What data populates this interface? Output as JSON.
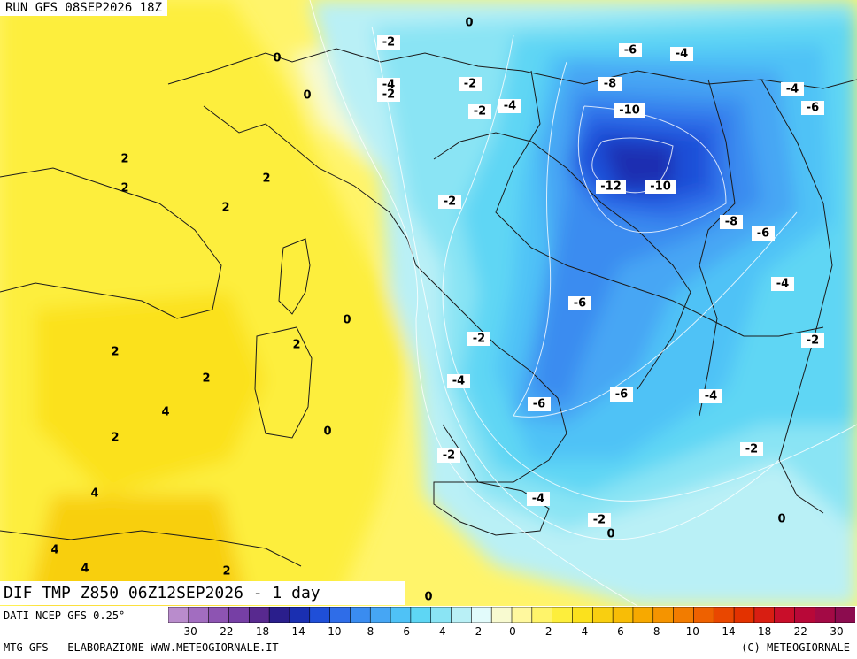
{
  "header": {
    "run_label": "RUN GFS 08SEP2026 18Z"
  },
  "map": {
    "title": "DIF TMP Z850 06Z12SEP2026 - 1 day",
    "field_labels": [
      {
        "text": "0"
      },
      {
        "text": "-2"
      },
      {
        "text": "0"
      },
      {
        "text": "0"
      },
      {
        "text": "-4"
      },
      {
        "text": "-2"
      },
      {
        "text": "-2"
      },
      {
        "text": "-2"
      },
      {
        "text": "-4"
      },
      {
        "text": "-6"
      },
      {
        "text": "-4"
      },
      {
        "text": "-8"
      },
      {
        "text": "-4"
      },
      {
        "text": "-10"
      },
      {
        "text": "-6"
      },
      {
        "text": "2"
      },
      {
        "text": "2"
      },
      {
        "text": "2"
      },
      {
        "text": "2"
      },
      {
        "text": "-12"
      },
      {
        "text": "-10"
      },
      {
        "text": "-2"
      },
      {
        "text": "-8"
      },
      {
        "text": "-6"
      },
      {
        "text": "-4"
      },
      {
        "text": "-6"
      },
      {
        "text": "0"
      },
      {
        "text": "2"
      },
      {
        "text": "-2"
      },
      {
        "text": "-2"
      },
      {
        "text": "2"
      },
      {
        "text": "2"
      },
      {
        "text": "-4"
      },
      {
        "text": "-6"
      },
      {
        "text": "-6"
      },
      {
        "text": "-4"
      },
      {
        "text": "4"
      },
      {
        "text": "0"
      },
      {
        "text": "2"
      },
      {
        "text": "-2"
      },
      {
        "text": "-2"
      },
      {
        "text": "4"
      },
      {
        "text": "-4"
      },
      {
        "text": "-2"
      },
      {
        "text": "0"
      },
      {
        "text": "0"
      },
      {
        "text": "4"
      },
      {
        "text": "4"
      },
      {
        "text": "2"
      },
      {
        "text": "0"
      }
    ]
  },
  "source_note": "DATI NCEP GFS 0.25°",
  "scale": {
    "colors": [
      "#b98ccc",
      "#a26dc0",
      "#8d54b2",
      "#763fa5",
      "#58298f",
      "#2a1e8c",
      "#1a2fb1",
      "#1f4fd8",
      "#2f6de8",
      "#3a8cf0",
      "#46a6f4",
      "#4fc2f6",
      "#5ed6f4",
      "#8ae4f4",
      "#b9f0f6",
      "#e2fbfb",
      "#f8fad0",
      "#fff89e",
      "#fff46a",
      "#fdee3c",
      "#fbe11d",
      "#f9cf10",
      "#f8bd06",
      "#f7a900",
      "#f59400",
      "#f27c00",
      "#ee6100",
      "#e94700",
      "#e33200",
      "#d81e12",
      "#c90e2a",
      "#b80838",
      "#a30a45",
      "#8c0c4f"
    ],
    "ticks": [
      "-30",
      "-22",
      "-18",
      "-14",
      "-10",
      "-8",
      "-6",
      "-4",
      "-2",
      "0",
      "2",
      "4",
      "6",
      "8",
      "10",
      "14",
      "18",
      "22",
      "30"
    ]
  },
  "footer": {
    "left": "MTG-GFS - ELABORAZIONE WWW.METEOGIORNALE.IT",
    "right": "(C) METEOGIORNALE"
  }
}
